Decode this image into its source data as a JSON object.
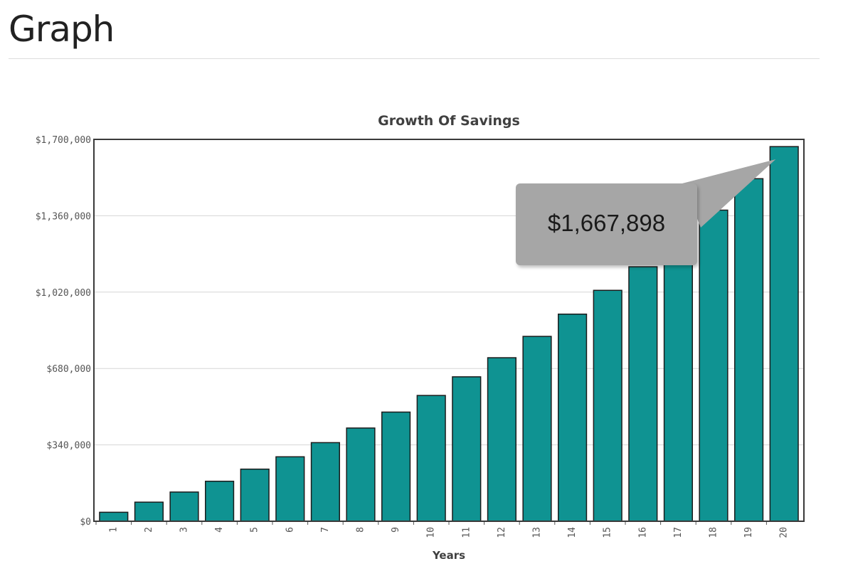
{
  "page": {
    "heading": "Graph"
  },
  "tooltip": {
    "value": "$1,667,898"
  },
  "colors": {
    "bar_fill": "#0f9392",
    "bar_stroke": "#1c1c1c",
    "grid": "#d6d6d6",
    "plot_border": "#3a3a3a",
    "tooltip_bg": "#a6a6a6"
  },
  "chart_data": {
    "type": "bar",
    "title": "Growth Of Savings",
    "xlabel": "Years",
    "ylabel": "",
    "categories": [
      "1",
      "2",
      "3",
      "4",
      "5",
      "6",
      "7",
      "8",
      "9",
      "10",
      "11",
      "12",
      "13",
      "14",
      "15",
      "16",
      "17",
      "18",
      "19",
      "20"
    ],
    "values": [
      40000,
      85000,
      130000,
      178000,
      232000,
      287000,
      350000,
      415000,
      486000,
      560000,
      643000,
      728000,
      823000,
      922000,
      1028000,
      1133000,
      1260000,
      1385000,
      1525000,
      1667898
    ],
    "yticks": [
      "$0",
      "$340,000",
      "$680,000",
      "$1,020,000",
      "$1,360,000",
      "$1,700,000"
    ],
    "ylim": [
      0,
      1700000
    ],
    "grid": true,
    "legend": "none"
  }
}
